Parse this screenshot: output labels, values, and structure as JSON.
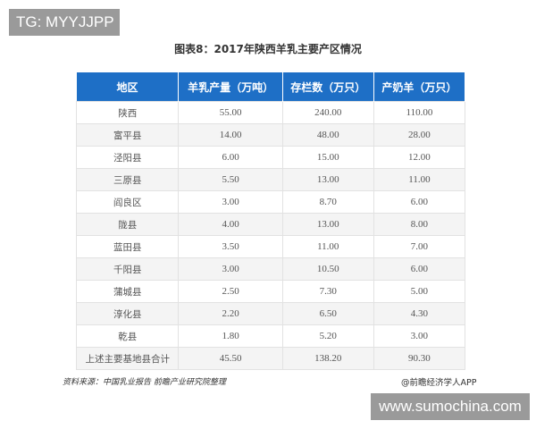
{
  "tg_label": "TG: MYYJJPP",
  "title": "图表8：2017年陕西羊乳主要产区情况",
  "table": {
    "headers": [
      "地区",
      "羊乳产量（万吨）",
      "存栏数（万只）",
      "产奶羊（万只）"
    ],
    "rows": [
      [
        "陕西",
        "55.00",
        "240.00",
        "110.00"
      ],
      [
        "富平县",
        "14.00",
        "48.00",
        "28.00"
      ],
      [
        "泾阳县",
        "6.00",
        "15.00",
        "12.00"
      ],
      [
        "三原县",
        "5.50",
        "13.00",
        "11.00"
      ],
      [
        "阎良区",
        "3.00",
        "8.70",
        "6.00"
      ],
      [
        "陇县",
        "4.00",
        "13.00",
        "8.00"
      ],
      [
        "蓝田县",
        "3.50",
        "11.00",
        "7.00"
      ],
      [
        "千阳县",
        "3.00",
        "10.50",
        "6.00"
      ],
      [
        "蒲城县",
        "2.50",
        "7.30",
        "5.00"
      ],
      [
        "淳化县",
        "2.20",
        "6.50",
        "4.30"
      ],
      [
        "乾县",
        "1.80",
        "5.20",
        "3.00"
      ],
      [
        "上述主要基地县合计",
        "45.50",
        "138.20",
        "90.30"
      ]
    ]
  },
  "source": "资料来源：中国乳业报告 前瞻产业研究院整理",
  "credit": "@前瞻经济学人APP",
  "site": "www.sumochina.com",
  "colors": {
    "header": "#1e6fc6"
  }
}
